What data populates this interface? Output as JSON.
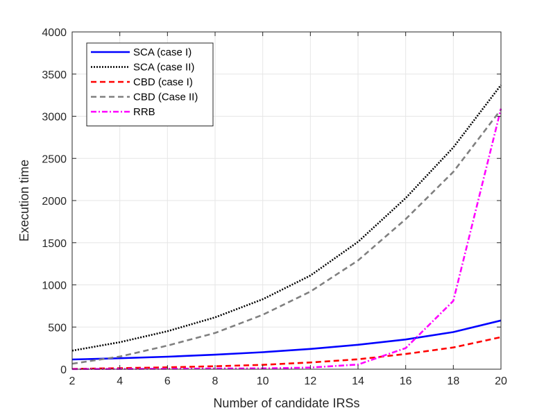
{
  "chart_data": {
    "type": "line",
    "title": "",
    "xlabel": "Number of candidate IRSs",
    "ylabel": "Execution time",
    "xlim": [
      2,
      20
    ],
    "ylim": [
      0,
      4000
    ],
    "xticks": [
      2,
      4,
      6,
      8,
      10,
      12,
      14,
      16,
      18,
      20
    ],
    "yticks": [
      0,
      500,
      1000,
      1500,
      2000,
      2500,
      3000,
      3500,
      4000
    ],
    "grid": true,
    "legend_position": "top-left",
    "x": [
      2,
      4,
      6,
      8,
      10,
      12,
      14,
      16,
      18,
      20
    ],
    "series": [
      {
        "name": "SCA (case I)",
        "color": "#0000ff",
        "dash": "solid",
        "values": [
          115,
          130,
          148,
          172,
          202,
          240,
          290,
          352,
          440,
          578
        ]
      },
      {
        "name": "SCA (case II)",
        "color": "#000000",
        "dash": "dotted",
        "values": [
          220,
          320,
          450,
          615,
          830,
          1110,
          1510,
          2030,
          2630,
          3370
        ]
      },
      {
        "name": "CBD (case I)",
        "color": "#ff0000",
        "dash": "dashed",
        "values": [
          3,
          12,
          22,
          35,
          52,
          80,
          118,
          180,
          258,
          380
        ]
      },
      {
        "name": "CBD (Case II)",
        "color": "#808080",
        "dash": "dashed",
        "values": [
          65,
          150,
          280,
          430,
          645,
          920,
          1290,
          1780,
          2340,
          3080
        ]
      },
      {
        "name": "RRB",
        "color": "#ff00ff",
        "dash": "dashdot",
        "values": [
          2,
          3,
          5,
          8,
          10,
          20,
          55,
          250,
          810,
          3090
        ]
      }
    ]
  }
}
